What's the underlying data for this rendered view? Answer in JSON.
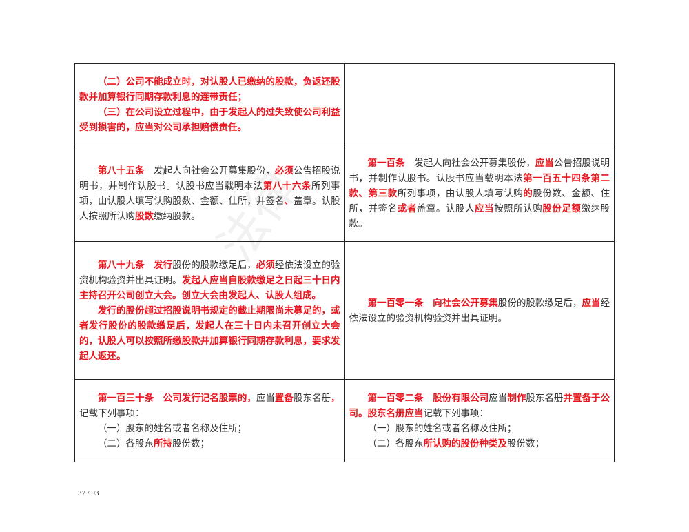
{
  "rows": [
    {
      "left": [
        [
          {
            "t": "（二）公司不能成立时，对认股人已缴纳的股款，负返还股款并加算银行同期存款利息的连带责任；",
            "red": true
          }
        ],
        [
          {
            "t": "（三）在公司设立过程中，由于发起人的过失致使公司利益受到损害的，应当对公司承担赔偿责任。",
            "red": true
          }
        ]
      ],
      "right": []
    },
    {
      "left": [
        [
          {
            "t": "第八十五条",
            "red": true
          },
          {
            "t": "　发起人向社会公开募集股份，"
          },
          {
            "t": "必须",
            "red": true
          },
          {
            "t": "公告招股说明书，并制作认股书。认股书应当载明本法"
          },
          {
            "t": "第八十六条",
            "red": true
          },
          {
            "t": "所列事项，由认股人填写认购股数、金额、住所，并签名"
          },
          {
            "t": "、",
            "red": true
          },
          {
            "t": "盖章。认股人按照所认购"
          },
          {
            "t": "股数",
            "red": true
          },
          {
            "t": "缴纳股款。"
          }
        ]
      ],
      "right": [
        [
          {
            "t": "第一百条",
            "red": true
          },
          {
            "t": "　发起人向社会公开募集股份，"
          },
          {
            "t": "应当",
            "red": true
          },
          {
            "t": "公告招股说明书，并制作认股书。认股书应当载明本法"
          },
          {
            "t": "第一百五十四条第二款、第三款",
            "red": true
          },
          {
            "t": "所列事项，由认股人填写认购"
          },
          {
            "t": "的",
            "red": true
          },
          {
            "t": "股份数、金额、住所，并签名"
          },
          {
            "t": "或者",
            "red": true
          },
          {
            "t": "盖章。认股人"
          },
          {
            "t": "应当",
            "red": true
          },
          {
            "t": "按照所认购"
          },
          {
            "t": "股份足额",
            "red": true
          },
          {
            "t": "缴纳股款。"
          }
        ]
      ]
    },
    {
      "left": [
        [
          {
            "t": "第八十九条",
            "red": true
          },
          {
            "t": "　"
          },
          {
            "t": "发行",
            "red": true
          },
          {
            "t": "股份的股款缴足后，"
          },
          {
            "t": "必须",
            "red": true
          },
          {
            "t": "经依法设立的验资机构验资并出具证明。"
          },
          {
            "t": "发起人应当自股款缴足之日起三十日内主持召开公司创立大会。创立大会由发起人、认股人组成。",
            "red": true
          }
        ],
        [
          {
            "t": "发行的股份超过招股说明书规定的截止期限尚未募足的，或者发行股份的股款缴足后，发起人在三十日内未召开创立大会的，认股人可以按照所缴股款并加算银行同期存款利息，要求发起人返还。",
            "red": true
          }
        ]
      ],
      "right": [
        [
          {
            "t": "第一百零一条",
            "red": true
          },
          {
            "t": "　"
          },
          {
            "t": "向社会公开募集",
            "red": true
          },
          {
            "t": "股份的股款缴足后，"
          },
          {
            "t": "应当",
            "red": true
          },
          {
            "t": "经依法设立的验资机构验资并出具证明。"
          }
        ]
      ]
    },
    {
      "left": [
        [
          {
            "t": "第一百三十条",
            "red": true
          },
          {
            "t": "　"
          },
          {
            "t": "公司发行记名股票的，",
            "red": true
          },
          {
            "t": "应当"
          },
          {
            "t": "置备",
            "red": true
          },
          {
            "t": "股东名册"
          },
          {
            "t": "，",
            "red": true
          },
          {
            "t": "记载下列事项："
          }
        ],
        [
          {
            "t": "（一）股东的姓名或者名称及住所；"
          }
        ],
        [
          {
            "t": "（二）各股东"
          },
          {
            "t": "所持",
            "red": true
          },
          {
            "t": "股份数；"
          }
        ]
      ],
      "right": [
        [
          {
            "t": "第一百零二条",
            "red": true
          },
          {
            "t": "　"
          },
          {
            "t": "股份有限公司",
            "red": true
          },
          {
            "t": "应当"
          },
          {
            "t": "制作",
            "red": true
          },
          {
            "t": "股东名册"
          },
          {
            "t": "并置备于公司。股东名册应当",
            "red": true
          },
          {
            "t": "记载下列事项："
          }
        ],
        [
          {
            "t": "（一）股东的姓名或者名称及住所；"
          }
        ],
        [
          {
            "t": "（二）各股东"
          },
          {
            "t": "所认购的股份种类及",
            "red": true
          },
          {
            "t": "股份数；"
          }
        ]
      ]
    }
  ],
  "page_number": "37 / 93",
  "colors": {
    "accent": "#e8161e",
    "text": "#333333"
  }
}
